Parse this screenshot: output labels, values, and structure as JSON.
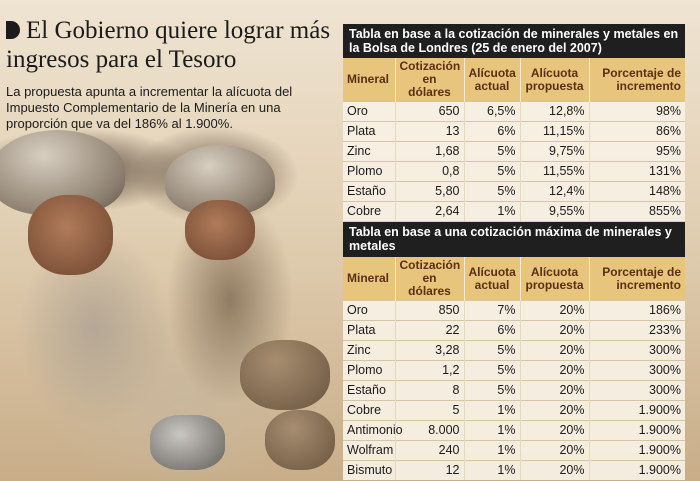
{
  "article": {
    "headline": "El Gobierno quiere lograr más ingresos para el Tesoro",
    "subtitle": "La propuesta apunta a incrementar la alícuota del Impuesto Complementario de la Minería en una proporción que va del 186% al 1.900%."
  },
  "table1": {
    "title": "Tabla en base a la cotización de minerales y metales en la Bolsa de Londres (25 de enero del 2007)",
    "headers": [
      "Mineral",
      "Cotización en dólares",
      "Alícuota actual",
      "Alícuota propuesta",
      "Porcentaje de incremento"
    ],
    "rows": [
      [
        "Oro",
        "650",
        "6,5%",
        "12,8%",
        "98%"
      ],
      [
        "Plata",
        "13",
        "6%",
        "11,15%",
        "86%"
      ],
      [
        "Zinc",
        "1,68",
        "5%",
        "9,75%",
        "95%"
      ],
      [
        "Plomo",
        "0,8",
        "5%",
        "11,55%",
        "131%"
      ],
      [
        "Estaño",
        "5,80",
        "5%",
        "12,4%",
        "148%"
      ],
      [
        "Cobre",
        "2,64",
        "1%",
        "9,55%",
        "855%"
      ]
    ]
  },
  "table2": {
    "title": "Tabla en base a una cotización máxima de minerales y metales",
    "headers": [
      "Mineral",
      "Cotización en dólares",
      "Alícuota actual",
      "Alícuota propuesta",
      "Porcentaje de incremento"
    ],
    "rows": [
      [
        "Oro",
        "850",
        "7%",
        "20%",
        "186%"
      ],
      [
        "Plata",
        "22",
        "6%",
        "20%",
        "233%"
      ],
      [
        "Zinc",
        "3,28",
        "5%",
        "20%",
        "300%"
      ],
      [
        "Plomo",
        "1,2",
        "5%",
        "20%",
        "300%"
      ],
      [
        "Estaño",
        "8",
        "5%",
        "20%",
        "300%"
      ],
      [
        "Cobre",
        "5",
        "1%",
        "20%",
        "1.900%"
      ],
      [
        "Antimonio",
        "8.000",
        "1%",
        "20%",
        "1.900%"
      ],
      [
        "Wolfram",
        "240",
        "1%",
        "20%",
        "1.900%"
      ],
      [
        "Bismuto",
        "12",
        "1%",
        "20%",
        "1.900%"
      ]
    ]
  },
  "colors": {
    "header_bg": "#e8c57c",
    "header_text": "#5a2f12",
    "title_bg": "#1f1f1f"
  }
}
